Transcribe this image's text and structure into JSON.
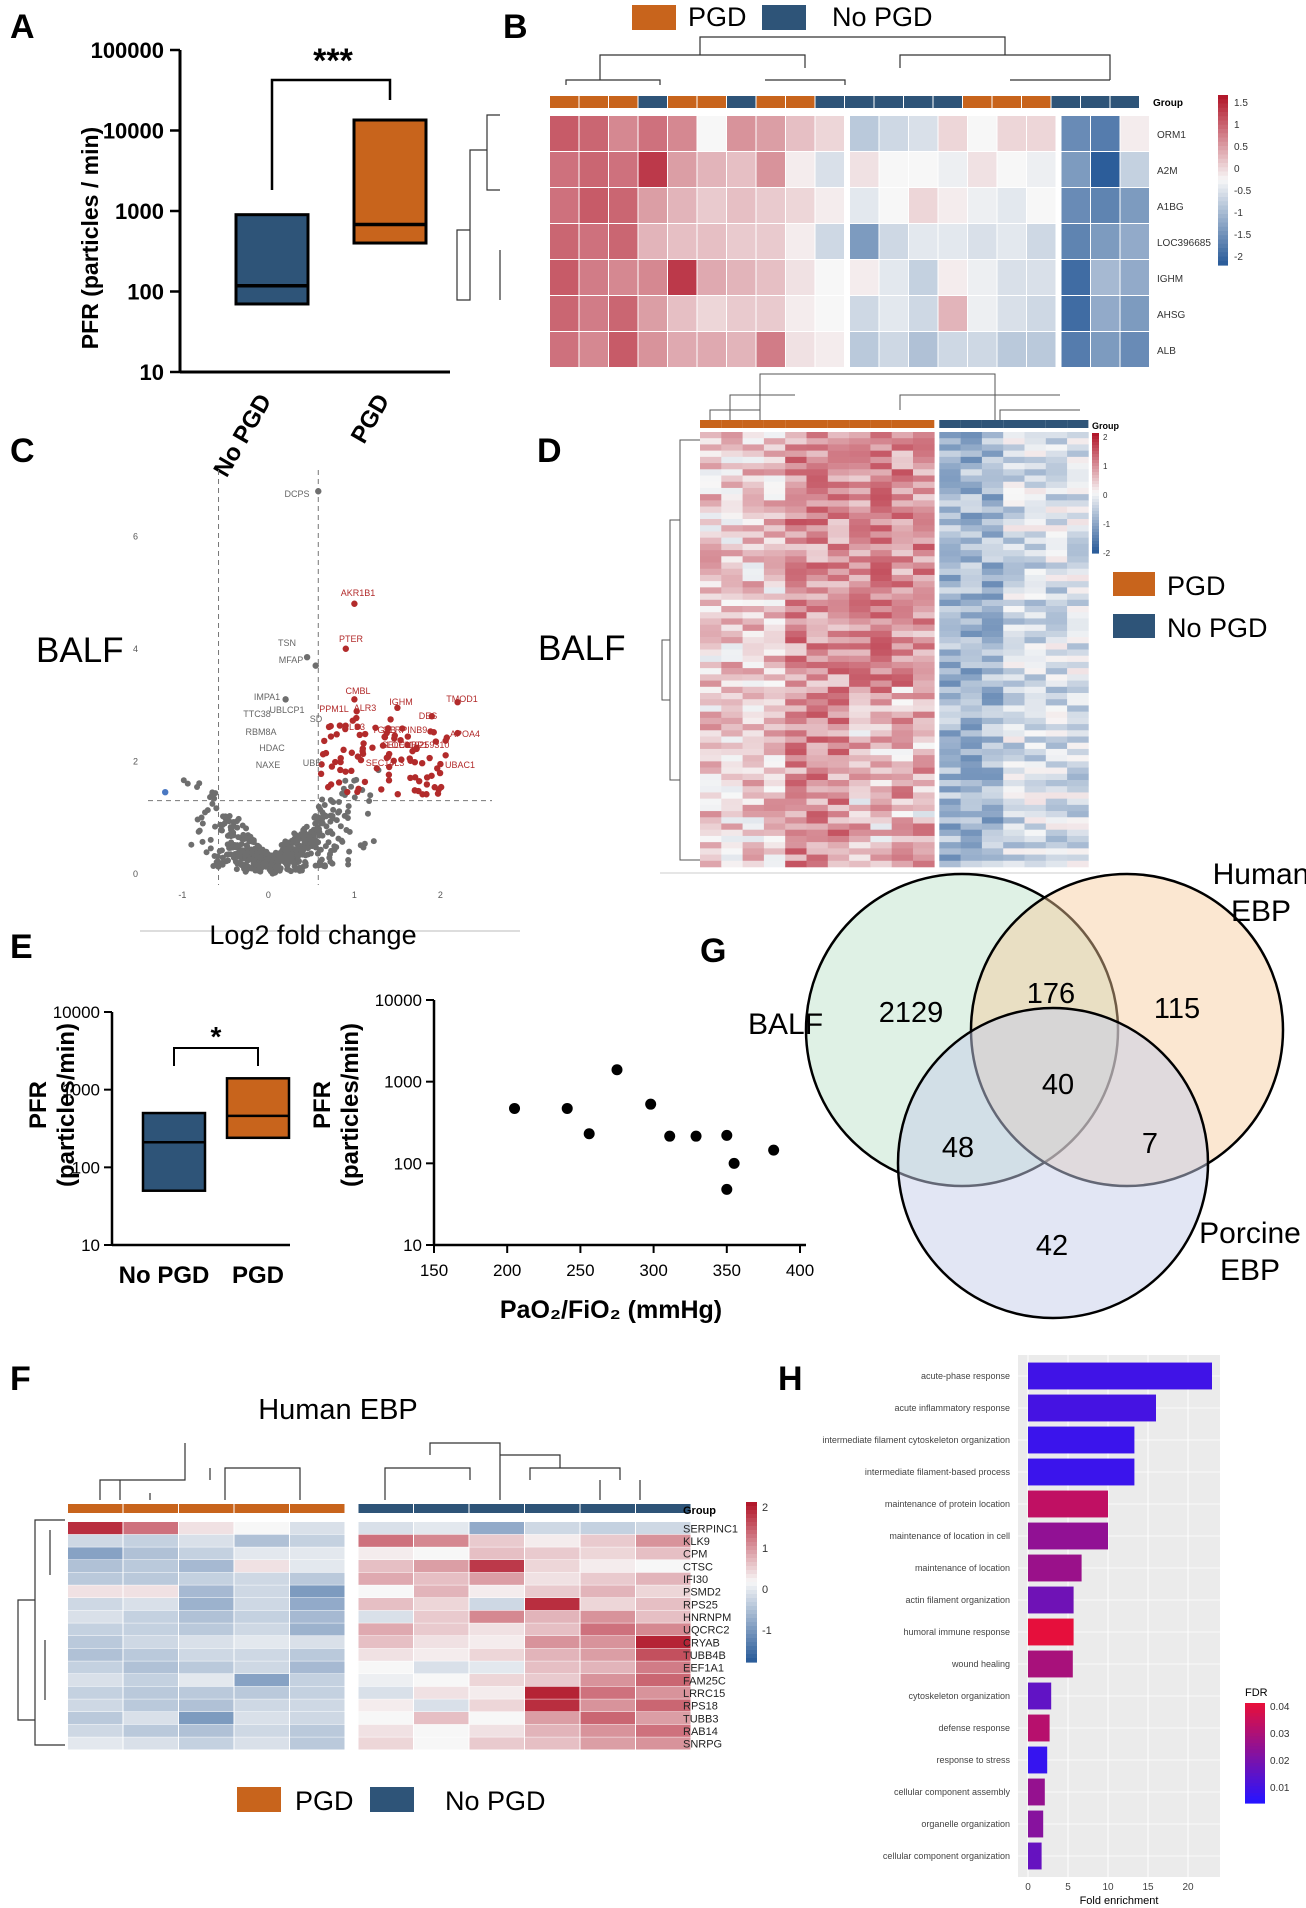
{
  "legend_labels": {
    "pgd": "PGD",
    "no_pgd": "No PGD"
  },
  "colors": {
    "pgd": "#c8641c",
    "no_pgd": "#2e5478",
    "red": "#b2182b",
    "blue": "#2c5d9a"
  },
  "panels": {
    "A": {
      "letter": "A",
      "ylabel": "PFR (particles / min)",
      "sig": "***",
      "yticks": [
        "10",
        "100",
        "1000",
        "10000",
        "100000"
      ],
      "cats": [
        "No PGD",
        "PGD"
      ]
    },
    "B": {
      "letter": "B",
      "group_label": "Group",
      "rows": [
        "ORM1",
        "A2M",
        "A1BG",
        "LOC396685",
        "IGHM",
        "AHSG",
        "ALB"
      ],
      "scale": [
        "1.5",
        "1",
        "0.5",
        "0",
        "-0.5",
        "-1",
        "-1.5",
        "-2"
      ]
    },
    "C": {
      "letter": "C",
      "side_label": "BALF",
      "xlabel": "Log2 fold change",
      "xticks": [
        "-1",
        "0",
        "1",
        "2"
      ],
      "yticks": [
        "0",
        "2",
        "4",
        "6"
      ],
      "labels_grey": [
        "DCPS",
        "TSN",
        "MFAP",
        "IMPA1",
        "TTC38",
        "RBM8A",
        "HDAC",
        "NAXE",
        "UBLCP1",
        "SD",
        "UBE"
      ],
      "labels_red": [
        "AKR1B1",
        "PTER",
        "CMBL",
        "ALR3",
        "IGHM",
        "TMOD1",
        "DES",
        "APOA4",
        "PPM1L",
        "PLS3",
        "TGFB",
        "SERPINB9",
        "SELENBP1",
        "LOC110259310",
        "SEC14L3",
        "UBAC1"
      ]
    },
    "D": {
      "letter": "D",
      "side_label": "BALF",
      "group_label": "Group",
      "scale": [
        "2",
        "1",
        "0",
        "-1",
        "-2"
      ]
    },
    "E": {
      "letter": "E",
      "ylabel1": "PFR",
      "ylabel2": "(particles/min)",
      "sig": "*",
      "yticks": [
        "10",
        "100",
        "1000",
        "10000"
      ],
      "cats": [
        "No PGD",
        "PGD"
      ],
      "scatter_xlabel": "PaO₂/FiO₂ (mmHg)",
      "scatter_xticks": [
        "150",
        "200",
        "250",
        "300",
        "350",
        "400"
      ]
    },
    "F": {
      "letter": "F",
      "title": "Human EBP",
      "group_label": "Group",
      "rows": [
        "SERPINC1",
        "KLK9",
        "CPM",
        "CTSC",
        "IFI30",
        "PSMD2",
        "RPS25",
        "HNRNPM",
        "UQCRC2",
        "CRYAB",
        "TUBB4B",
        "EEF1A1",
        "FAM25C",
        "LRRC15",
        "RPS18",
        "TUBB3",
        "RAB14",
        "SNRPG"
      ],
      "scale": [
        "2",
        "1",
        "0",
        "-1"
      ]
    },
    "G": {
      "letter": "G",
      "set_balf": "BALF",
      "set_human": "Human\nEBP",
      "set_porcine": "Porcine\nEBP",
      "counts": {
        "balf_only": "2129",
        "balf_human": "176",
        "human_only": "115",
        "all": "40",
        "balf_porcine": "48",
        "human_porcine": "7",
        "porcine_only": "42"
      }
    },
    "H": {
      "letter": "H",
      "xlabel": "Fold enrichment",
      "legend_title": "FDR",
      "xticks": [
        "0",
        "5",
        "10",
        "15",
        "20"
      ],
      "fdr_ticks": [
        "0.04",
        "0.03",
        "0.02",
        "0.01"
      ]
    }
  },
  "chart_data": [
    {
      "panel": "A",
      "type": "box",
      "yscale": "log",
      "ylim": [
        10,
        100000
      ],
      "categories": [
        "No PGD",
        "PGD"
      ],
      "boxes": [
        {
          "q1": 70,
          "median": 118,
          "q3": 900
        },
        {
          "q1": 400,
          "median": 680,
          "q3": 13500
        }
      ]
    },
    {
      "panel": "B",
      "type": "heatmap",
      "cols": 20,
      "group": [
        "PGD",
        "PGD",
        "PGD",
        "No PGD",
        "PGD",
        "PGD",
        "No PGD",
        "PGD",
        "PGD",
        "No PGD",
        "No PGD",
        "No PGD",
        "No PGD",
        "No PGD",
        "PGD",
        "PGD",
        "PGD",
        "No PGD",
        "No PGD",
        "No PGD"
      ],
      "values": [
        [
          1.4,
          1.3,
          1.0,
          1.2,
          1.0,
          0.0,
          0.9,
          0.8,
          0.5,
          0.3,
          -0.6,
          -0.4,
          -0.3,
          0.3,
          0.0,
          0.3,
          0.3,
          -1.4,
          -1.6,
          0.1
        ],
        [
          1.2,
          1.3,
          1.2,
          1.7,
          0.8,
          0.6,
          0.5,
          0.9,
          0.1,
          -0.3,
          0.2,
          0.0,
          0.0,
          -0.1,
          0.2,
          0.0,
          -0.1,
          -1.2,
          -2.0,
          -0.5
        ],
        [
          1.2,
          1.4,
          1.3,
          0.8,
          0.6,
          0.4,
          0.5,
          0.4,
          0.3,
          0.1,
          -0.2,
          0.0,
          0.3,
          0.1,
          -0.1,
          -0.2,
          0.0,
          -1.4,
          -1.5,
          -1.2
        ],
        [
          1.3,
          1.2,
          1.3,
          0.6,
          0.5,
          0.5,
          0.4,
          0.4,
          0.1,
          -0.4,
          -1.2,
          -0.4,
          -0.2,
          -0.2,
          -0.3,
          -0.2,
          -0.4,
          -1.5,
          -1.2,
          -1.0
        ],
        [
          1.4,
          1.1,
          1.0,
          1.0,
          1.7,
          0.7,
          0.6,
          0.5,
          0.2,
          0.0,
          0.1,
          -0.2,
          -0.5,
          0.1,
          -0.1,
          -0.3,
          -0.3,
          -1.8,
          -0.8,
          -1.0
        ],
        [
          1.3,
          1.1,
          1.3,
          0.8,
          0.5,
          0.3,
          0.4,
          0.4,
          0.1,
          0.0,
          -0.4,
          -0.2,
          -0.4,
          0.6,
          -0.1,
          -0.3,
          -0.4,
          -1.8,
          -1.0,
          -1.2
        ],
        [
          1.2,
          1.0,
          1.4,
          0.9,
          0.7,
          0.7,
          0.6,
          1.1,
          0.2,
          0.1,
          -0.6,
          -0.4,
          -0.7,
          -0.4,
          -0.4,
          -0.6,
          -0.6,
          -1.6,
          -1.2,
          -1.4
        ]
      ]
    },
    {
      "panel": "C",
      "type": "scatter",
      "xlim": [
        -1.4,
        2.6
      ],
      "ylim": [
        -0.2,
        7.0
      ],
      "x_thresholds": [
        -0.58,
        0.58
      ],
      "y_threshold": 1.3,
      "labeled_points": [
        {
          "name": "DCPS",
          "x": 0.58,
          "y": 6.8
        },
        {
          "name": "AKR1B1",
          "x": 1.0,
          "y": 4.8
        },
        {
          "name": "PTER",
          "x": 0.9,
          "y": 4.0
        },
        {
          "name": "TSN",
          "x": 0.45,
          "y": 3.85
        },
        {
          "name": "MFAP",
          "x": 0.55,
          "y": 3.7
        },
        {
          "name": "IMPA1",
          "x": 0.2,
          "y": 3.1
        },
        {
          "name": "CMBL",
          "x": 1.0,
          "y": 3.1
        },
        {
          "name": "IGHM",
          "x": 1.5,
          "y": 2.95
        },
        {
          "name": "TMOD1",
          "x": 2.2,
          "y": 3.05
        },
        {
          "name": "DES",
          "x": 1.9,
          "y": 2.8
        },
        {
          "name": "APOA4",
          "x": 2.2,
          "y": 2.5
        },
        {
          "name": "UBAC1",
          "x": 2.0,
          "y": 1.95
        }
      ],
      "note": "remaining points: non-significant cloud near origin"
    },
    {
      "panel": "D",
      "type": "heatmap",
      "rows": 70,
      "cols": 18,
      "group": [
        "PGD",
        "PGD",
        "PGD",
        "PGD",
        "PGD",
        "PGD",
        "PGD",
        "PGD",
        "PGD",
        "PGD",
        "PGD",
        "No PGD",
        "No PGD",
        "No PGD",
        "No PGD",
        "No PGD",
        "No PGD",
        "No PGD"
      ]
    },
    {
      "panel": "E-box",
      "type": "box",
      "yscale": "log",
      "ylim": [
        10,
        10000
      ],
      "categories": [
        "No PGD",
        "PGD"
      ],
      "boxes": [
        {
          "q1": 50,
          "median": 210,
          "q3": 500
        },
        {
          "q1": 240,
          "median": 460,
          "q3": 1400
        }
      ]
    },
    {
      "panel": "E-scatter",
      "type": "scatter",
      "yscale": "log",
      "xlim": [
        150,
        400
      ],
      "ylim": [
        10,
        10000
      ],
      "points": [
        [
          205,
          470
        ],
        [
          241,
          470
        ],
        [
          256,
          230
        ],
        [
          275,
          1400
        ],
        [
          298,
          530
        ],
        [
          311,
          215
        ],
        [
          329,
          215
        ],
        [
          350,
          220
        ],
        [
          350,
          48
        ],
        [
          355,
          100
        ],
        [
          382,
          145
        ]
      ]
    },
    {
      "panel": "F",
      "type": "heatmap",
      "cols": 11,
      "group": [
        "PGD",
        "PGD",
        "PGD",
        "PGD",
        "PGD",
        "No PGD",
        "No PGD",
        "No PGD",
        "No PGD",
        "No PGD",
        "No PGD"
      ],
      "values": [
        [
          1.8,
          1.2,
          0.2,
          0.0,
          -0.3,
          -0.3,
          -0.2,
          -1.0,
          -0.4,
          -0.5,
          -0.4
        ],
        [
          -0.4,
          -0.5,
          -0.3,
          -0.7,
          -0.5,
          1.2,
          1.0,
          0.4,
          0.1,
          0.4,
          0.9
        ],
        [
          -1.1,
          -0.7,
          -0.5,
          -0.2,
          -0.2,
          0.1,
          0.0,
          0.5,
          0.4,
          0.3,
          0.5
        ],
        [
          -0.7,
          -0.6,
          -0.8,
          0.2,
          -0.2,
          0.5,
          0.8,
          1.7,
          0.3,
          0.1,
          0.0
        ],
        [
          -0.6,
          -0.6,
          -0.5,
          -0.4,
          -0.6,
          0.7,
          0.5,
          0.8,
          0.2,
          0.4,
          0.6
        ],
        [
          0.2,
          0.2,
          -0.8,
          -0.4,
          -1.2,
          0.0,
          0.6,
          0.1,
          0.4,
          0.6,
          0.3
        ],
        [
          -0.4,
          -0.3,
          -0.9,
          -0.4,
          -1.0,
          0.5,
          0.3,
          -0.4,
          1.8,
          0.3,
          0.5
        ],
        [
          -0.3,
          -0.5,
          -0.7,
          -0.5,
          -0.8,
          -0.3,
          0.4,
          1.0,
          0.6,
          0.9,
          0.5
        ],
        [
          -0.5,
          -0.5,
          -0.6,
          -0.4,
          -0.9,
          0.7,
          0.4,
          0.2,
          0.5,
          1.2,
          1.0
        ],
        [
          -0.6,
          -0.4,
          -0.3,
          -0.2,
          -0.3,
          0.5,
          0.2,
          0.1,
          0.9,
          0.9,
          1.9
        ],
        [
          -0.7,
          -0.6,
          -0.4,
          -0.4,
          -0.6,
          0.2,
          0.1,
          0.3,
          0.6,
          0.8,
          1.5
        ],
        [
          -0.5,
          -0.7,
          -0.6,
          -0.4,
          -0.8,
          0.0,
          -0.3,
          -0.2,
          0.5,
          0.6,
          1.1
        ],
        [
          -0.3,
          -0.5,
          -0.2,
          -1.1,
          -0.5,
          -0.1,
          0.0,
          0.3,
          0.4,
          0.9,
          1.3
        ],
        [
          -0.5,
          -0.6,
          -0.6,
          -0.6,
          -0.5,
          -0.3,
          0.2,
          0.1,
          1.9,
          1.2,
          0.9
        ],
        [
          -0.4,
          -0.6,
          -0.7,
          -0.4,
          -0.4,
          0.1,
          -0.3,
          0.3,
          1.8,
          0.9,
          1.3
        ],
        [
          -0.6,
          -0.3,
          -1.2,
          -0.3,
          -0.4,
          0.0,
          0.5,
          0.0,
          0.8,
          1.3,
          0.8
        ],
        [
          -0.4,
          -0.6,
          -0.7,
          -0.4,
          -0.6,
          0.2,
          0.0,
          0.2,
          0.6,
          0.9,
          1.2
        ],
        [
          -0.2,
          -0.3,
          -0.5,
          -0.3,
          -0.6,
          0.3,
          0.0,
          0.4,
          0.5,
          0.8,
          0.9
        ]
      ]
    },
    {
      "panel": "H",
      "type": "bar",
      "orientation": "horizontal",
      "xlim": [
        0,
        24
      ],
      "categories": [
        "acute-phase response",
        "acute inflammatory response",
        "intermediate filament cytoskeleton organization",
        "intermediate filament-based process",
        "maintenance of protein location",
        "maintenance of location in cell",
        "maintenance of location",
        "actin filament organization",
        "humoral immune response",
        "wound healing",
        "cytoskeleton organization",
        "defense response",
        "response to stress",
        "cellular component assembly",
        "organelle organization",
        "cellular component organization"
      ],
      "values": [
        23,
        16,
        13.3,
        13.3,
        10,
        10,
        6.7,
        5.7,
        5.7,
        5.6,
        2.9,
        2.7,
        2.4,
        2.1,
        1.9,
        1.7
      ],
      "fdr": [
        0.005,
        0.006,
        0.004,
        0.004,
        0.032,
        0.022,
        0.024,
        0.015,
        0.04,
        0.027,
        0.012,
        0.03,
        0.003,
        0.023,
        0.02,
        0.013
      ]
    }
  ]
}
